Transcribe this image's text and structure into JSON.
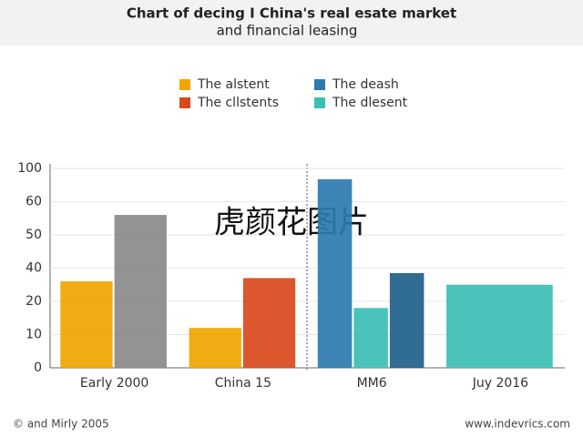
{
  "chart_data": {
    "type": "bar",
    "title": "Chart of decing I China's real esate market",
    "subtitle": "and financial leasing",
    "categories": [
      "Early 2000",
      "China 15",
      "MM6",
      "Juy 2016"
    ],
    "series": [
      {
        "name": "The alstent",
        "color": "#f0a500",
        "values": [
          32,
          12,
          null,
          null
        ]
      },
      {
        "name": "The deash",
        "color": "#2b7bb0",
        "values": [
          null,
          null,
          87,
          null
        ]
      },
      {
        "name": "The cllstents",
        "color": "#d9481c",
        "values": [
          null,
          34,
          null,
          null
        ]
      },
      {
        "name": "The dlesent",
        "color": "#3bbfb5",
        "values": [
          null,
          null,
          18,
          30
        ]
      },
      {
        "color": "#8a8a8a",
        "values": [
          56,
          null,
          null,
          null
        ]
      },
      {
        "color": "#1f5f8a",
        "values": [
          null,
          null,
          37,
          null
        ]
      }
    ],
    "ylim": [
      0,
      100
    ],
    "yticks": [
      0,
      10,
      20,
      40,
      50,
      60,
      100
    ],
    "grid": true,
    "watermark": "虎颜花图片",
    "footer_left": "© and Mirly 2005",
    "footer_right": "www.indevrics.com"
  }
}
